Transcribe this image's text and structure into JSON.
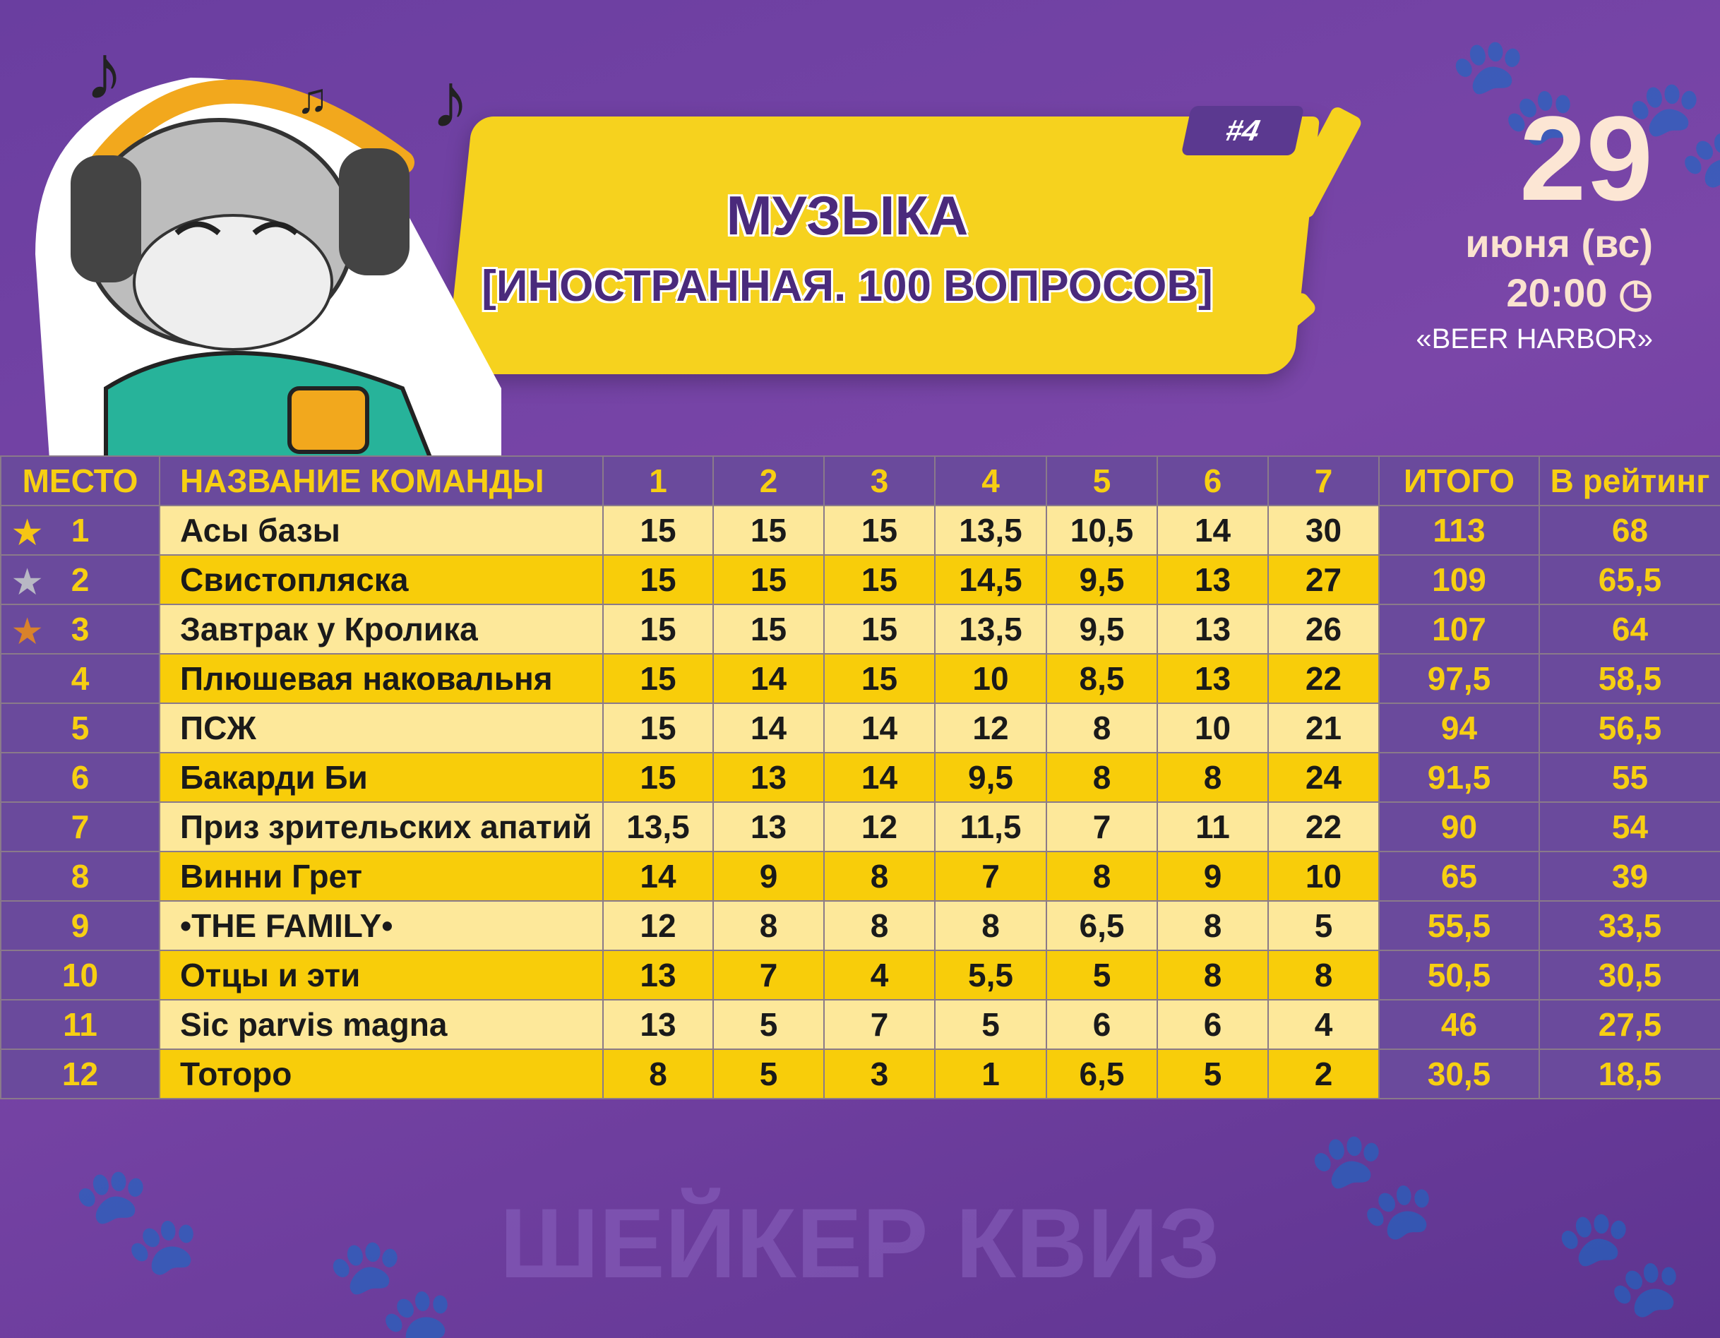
{
  "header": {
    "badge": "#4",
    "title": "МУЗЫКА",
    "subtitle": "[ИНОСТРАННАЯ. 100 ВОПРОСОВ]"
  },
  "event": {
    "day": "29",
    "month": "июня (вс)",
    "time": "20:00",
    "venue": "«BEER HARBOR»",
    "clock_icon": "clock-icon"
  },
  "colors": {
    "background": "#6a3ea0",
    "banner": "#f6d21e",
    "row_light": "#fde89a",
    "row_dark": "#f8cd0a",
    "accent_text": "#f7cf12",
    "gold": "#f6c514",
    "silver": "#b8b8c4",
    "bronze": "#d9822b"
  },
  "table": {
    "columns": [
      "МЕСТО",
      "НАЗВАНИЕ КОМАНДЫ",
      "1",
      "2",
      "3",
      "4",
      "5",
      "6",
      "7",
      "ИТОГО",
      "В рейтинг"
    ],
    "rows": [
      {
        "place": "1",
        "medal": "gold",
        "team": "Асы базы",
        "scores": [
          "15",
          "15",
          "15",
          "13,5",
          "10,5",
          "14",
          "30"
        ],
        "total": "113",
        "rating": "68"
      },
      {
        "place": "2",
        "medal": "silver",
        "team": "Свистопляска",
        "scores": [
          "15",
          "15",
          "15",
          "14,5",
          "9,5",
          "13",
          "27"
        ],
        "total": "109",
        "rating": "65,5"
      },
      {
        "place": "3",
        "medal": "bronze",
        "team": "Завтрак у Кролика",
        "scores": [
          "15",
          "15",
          "15",
          "13,5",
          "9,5",
          "13",
          "26"
        ],
        "total": "107",
        "rating": "64"
      },
      {
        "place": "4",
        "team": "Плюшевая наковальня",
        "scores": [
          "15",
          "14",
          "15",
          "10",
          "8,5",
          "13",
          "22"
        ],
        "total": "97,5",
        "rating": "58,5"
      },
      {
        "place": "5",
        "team": "ПСЖ",
        "scores": [
          "15",
          "14",
          "14",
          "12",
          "8",
          "10",
          "21"
        ],
        "total": "94",
        "rating": "56,5"
      },
      {
        "place": "6",
        "team": "Бакарди Би",
        "scores": [
          "15",
          "13",
          "14",
          "9,5",
          "8",
          "8",
          "24"
        ],
        "total": "91,5",
        "rating": "55"
      },
      {
        "place": "7",
        "team": "Приз зрительских апатий",
        "scores": [
          "13,5",
          "13",
          "12",
          "11,5",
          "7",
          "11",
          "22"
        ],
        "total": "90",
        "rating": "54"
      },
      {
        "place": "8",
        "team": "Винни Грет",
        "scores": [
          "14",
          "9",
          "8",
          "7",
          "8",
          "9",
          "10"
        ],
        "total": "65",
        "rating": "39"
      },
      {
        "place": "9",
        "team": "•THE FAMILY•",
        "scores": [
          "12",
          "8",
          "8",
          "8",
          "6,5",
          "8",
          "5"
        ],
        "total": "55,5",
        "rating": "33,5"
      },
      {
        "place": "10",
        "team": "Отцы и эти",
        "scores": [
          "13",
          "7",
          "4",
          "5,5",
          "5",
          "8",
          "8"
        ],
        "total": "50,5",
        "rating": "30,5"
      },
      {
        "place": "11",
        "team": "Sic parvis magna",
        "scores": [
          "13",
          "5",
          "7",
          "5",
          "6",
          "6",
          "4"
        ],
        "total": "46",
        "rating": "27,5"
      },
      {
        "place": "12",
        "team": "Тоторо",
        "scores": [
          "8",
          "5",
          "3",
          "1",
          "6,5",
          "5",
          "2"
        ],
        "total": "30,5",
        "rating": "18,5"
      }
    ]
  },
  "watermark": "ШЕЙКЕР КВИЗ"
}
